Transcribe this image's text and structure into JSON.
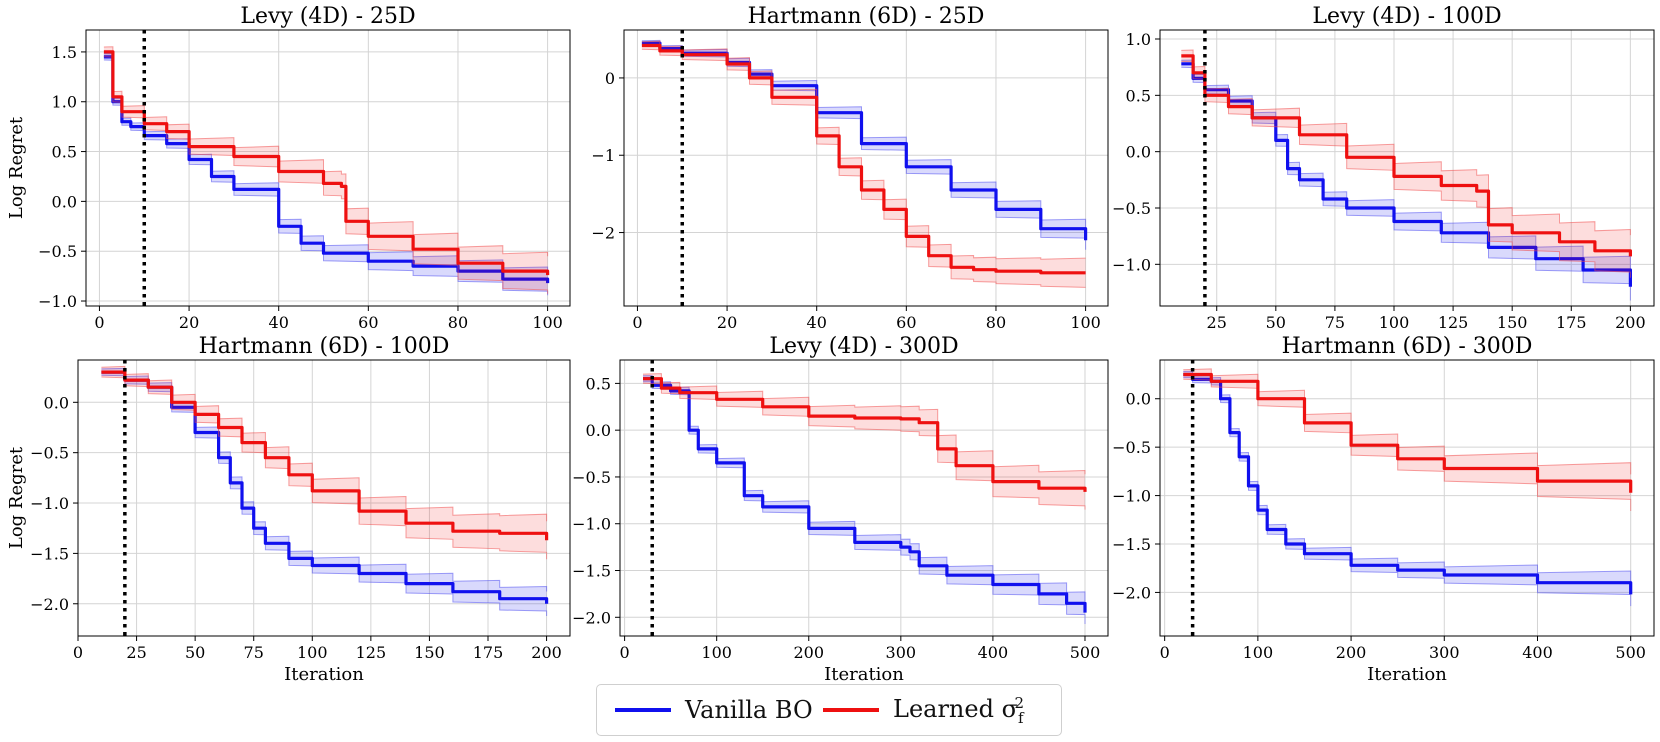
{
  "legend": {
    "series": [
      {
        "name": "Vanilla BO",
        "color": "#1010ee"
      },
      {
        "name": "Learned σ",
        "name_sup": "2",
        "name_sub": "f",
        "color": "#ee1010"
      }
    ]
  },
  "chart_data": [
    {
      "type": "line",
      "title": "Levy (4D) - 25D",
      "xlabel": "",
      "ylabel": "Log Regret",
      "xlim": [
        -3,
        105
      ],
      "ylim": [
        -1.05,
        1.72
      ],
      "xticks": [
        0,
        20,
        40,
        60,
        80,
        100
      ],
      "yticks": [
        -1.0,
        -0.5,
        0.0,
        0.5,
        1.0,
        1.5
      ],
      "vline_x": 10,
      "series": [
        {
          "name": "Vanilla BO",
          "x": [
            1,
            3,
            5,
            7,
            10,
            15,
            20,
            25,
            30,
            40,
            45,
            50,
            60,
            70,
            80,
            90,
            100
          ],
          "values": [
            1.45,
            1.0,
            0.8,
            0.75,
            0.66,
            0.58,
            0.42,
            0.25,
            0.12,
            -0.25,
            -0.42,
            -0.52,
            -0.6,
            -0.65,
            -0.7,
            -0.78,
            -0.82
          ]
        },
        {
          "name": "Learned σf²",
          "x": [
            1,
            3,
            5,
            10,
            15,
            20,
            30,
            40,
            50,
            54,
            55,
            60,
            70,
            80,
            90,
            100
          ],
          "values": [
            1.5,
            1.05,
            0.9,
            0.78,
            0.7,
            0.55,
            0.45,
            0.3,
            0.18,
            0.15,
            -0.2,
            -0.35,
            -0.48,
            -0.62,
            -0.7,
            -0.74
          ]
        }
      ]
    },
    {
      "type": "line",
      "title": "Hartmann (6D) - 25D",
      "xlabel": "",
      "ylabel": "",
      "xlim": [
        -3,
        105
      ],
      "ylim": [
        -2.95,
        0.62
      ],
      "xticks": [
        0,
        20,
        40,
        60,
        80,
        100
      ],
      "yticks": [
        -2,
        -1,
        0
      ],
      "vline_x": 10,
      "series": [
        {
          "name": "Vanilla BO",
          "x": [
            1,
            5,
            10,
            20,
            25,
            30,
            40,
            50,
            60,
            70,
            80,
            90,
            100
          ],
          "values": [
            0.45,
            0.38,
            0.32,
            0.2,
            0.05,
            -0.1,
            -0.45,
            -0.85,
            -1.15,
            -1.45,
            -1.7,
            -1.95,
            -2.1
          ]
        },
        {
          "name": "Learned σf²",
          "x": [
            1,
            5,
            10,
            20,
            25,
            30,
            40,
            45,
            50,
            55,
            60,
            65,
            70,
            75,
            80,
            90,
            100
          ],
          "values": [
            0.42,
            0.35,
            0.3,
            0.18,
            0.0,
            -0.25,
            -0.75,
            -1.15,
            -1.45,
            -1.7,
            -2.05,
            -2.3,
            -2.45,
            -2.48,
            -2.5,
            -2.52,
            -2.52
          ]
        }
      ]
    },
    {
      "type": "line",
      "title": "Levy (4D) - 100D",
      "xlabel": "",
      "ylabel": "",
      "xlim": [
        1,
        210
      ],
      "ylim": [
        -1.37,
        1.08
      ],
      "xticks": [
        25,
        50,
        75,
        100,
        125,
        150,
        175,
        200
      ],
      "yticks": [
        -1.0,
        -0.5,
        0.0,
        0.5,
        1.0
      ],
      "vline_x": 20,
      "series": [
        {
          "name": "Vanilla BO",
          "x": [
            10,
            15,
            20,
            30,
            40,
            50,
            55,
            60,
            70,
            80,
            100,
            120,
            140,
            160,
            180,
            200
          ],
          "values": [
            0.78,
            0.65,
            0.55,
            0.45,
            0.3,
            0.1,
            -0.15,
            -0.25,
            -0.42,
            -0.5,
            -0.62,
            -0.72,
            -0.85,
            -0.95,
            -1.05,
            -1.2
          ]
        },
        {
          "name": "Learned σf²",
          "x": [
            10,
            15,
            20,
            30,
            40,
            60,
            80,
            100,
            120,
            135,
            140,
            150,
            170,
            185,
            200
          ],
          "values": [
            0.85,
            0.7,
            0.5,
            0.4,
            0.3,
            0.15,
            -0.05,
            -0.22,
            -0.3,
            -0.35,
            -0.65,
            -0.72,
            -0.8,
            -0.88,
            -0.93
          ]
        }
      ]
    },
    {
      "type": "line",
      "title": "Hartmann (6D) - 100D",
      "xlabel": "Iteration",
      "ylabel": "Log Regret",
      "xlim": [
        0,
        210
      ],
      "ylim": [
        -2.32,
        0.42
      ],
      "xticks": [
        0,
        25,
        50,
        75,
        100,
        125,
        150,
        175,
        200
      ],
      "yticks": [
        -2.0,
        -1.5,
        -1.0,
        -0.5,
        0.0
      ],
      "vline_x": 20,
      "series": [
        {
          "name": "Vanilla BO",
          "x": [
            10,
            20,
            30,
            40,
            50,
            60,
            65,
            70,
            75,
            80,
            90,
            100,
            120,
            140,
            160,
            180,
            200
          ],
          "values": [
            0.3,
            0.22,
            0.15,
            -0.05,
            -0.3,
            -0.55,
            -0.8,
            -1.05,
            -1.25,
            -1.4,
            -1.55,
            -1.62,
            -1.7,
            -1.8,
            -1.88,
            -1.95,
            -2.0
          ]
        },
        {
          "name": "Learned σf²",
          "x": [
            10,
            20,
            30,
            40,
            50,
            60,
            70,
            80,
            90,
            100,
            120,
            140,
            160,
            180,
            200
          ],
          "values": [
            0.3,
            0.22,
            0.15,
            0.0,
            -0.12,
            -0.25,
            -0.4,
            -0.55,
            -0.72,
            -0.88,
            -1.08,
            -1.2,
            -1.28,
            -1.3,
            -1.37
          ]
        }
      ]
    },
    {
      "type": "line",
      "title": "Levy (4D) - 300D",
      "xlabel": "Iteration",
      "ylabel": "",
      "xlim": [
        -5,
        525
      ],
      "ylim": [
        -2.2,
        0.75
      ],
      "xticks": [
        0,
        100,
        200,
        300,
        400,
        500
      ],
      "yticks": [
        -2.0,
        -1.5,
        -1.0,
        -0.5,
        0.0,
        0.5
      ],
      "vline_x": 30,
      "series": [
        {
          "name": "Vanilla BO",
          "x": [
            20,
            30,
            50,
            70,
            80,
            100,
            130,
            150,
            200,
            250,
            300,
            310,
            320,
            350,
            400,
            450,
            480,
            500
          ],
          "values": [
            0.55,
            0.48,
            0.42,
            0.0,
            -0.2,
            -0.35,
            -0.7,
            -0.82,
            -1.05,
            -1.2,
            -1.25,
            -1.3,
            -1.45,
            -1.55,
            -1.65,
            -1.75,
            -1.85,
            -1.95
          ]
        },
        {
          "name": "Learned σf²",
          "x": [
            20,
            40,
            60,
            100,
            150,
            200,
            250,
            300,
            320,
            340,
            360,
            400,
            450,
            500
          ],
          "values": [
            0.55,
            0.45,
            0.4,
            0.33,
            0.25,
            0.15,
            0.13,
            0.12,
            0.08,
            -0.2,
            -0.38,
            -0.55,
            -0.62,
            -0.66
          ]
        }
      ]
    },
    {
      "type": "line",
      "title": "Hartmann (6D) - 300D",
      "xlabel": "Iteration",
      "ylabel": "",
      "xlim": [
        -5,
        525
      ],
      "ylim": [
        -2.45,
        0.4
      ],
      "xticks": [
        0,
        100,
        200,
        300,
        400,
        500
      ],
      "yticks": [
        -2.0,
        -1.5,
        -1.0,
        -0.5,
        0.0
      ],
      "vline_x": 30,
      "series": [
        {
          "name": "Vanilla BO",
          "x": [
            20,
            30,
            50,
            60,
            70,
            80,
            90,
            100,
            110,
            130,
            150,
            200,
            250,
            300,
            400,
            500
          ],
          "values": [
            0.25,
            0.2,
            0.18,
            0.0,
            -0.35,
            -0.6,
            -0.9,
            -1.15,
            -1.35,
            -1.5,
            -1.6,
            -1.72,
            -1.77,
            -1.82,
            -1.9,
            -2.02
          ]
        },
        {
          "name": "Learned σf²",
          "x": [
            20,
            50,
            100,
            150,
            200,
            250,
            300,
            400,
            500
          ],
          "values": [
            0.25,
            0.18,
            0.0,
            -0.25,
            -0.48,
            -0.62,
            -0.72,
            -0.85,
            -0.97
          ]
        }
      ]
    }
  ]
}
